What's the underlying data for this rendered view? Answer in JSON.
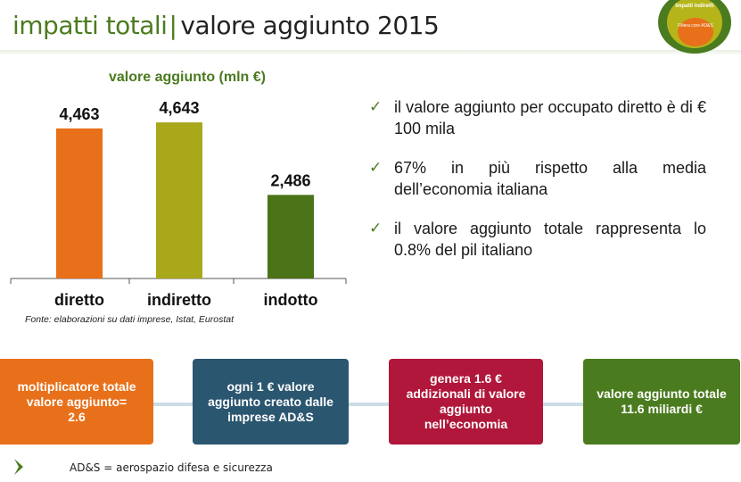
{
  "header": {
    "title_part1": "impatti totali",
    "separator": "|",
    "title_part2": "valore aggiunto 2015"
  },
  "logo": {
    "outer_text": "Impatti indiretti",
    "inner_text": "Filiera core AD&S"
  },
  "chart_data": {
    "type": "bar",
    "title": "valore aggiunto (mln €)",
    "categories": [
      "diretto",
      "indiretto",
      "indotto"
    ],
    "values": [
      4463,
      4643,
      2486
    ],
    "value_labels": [
      "4,463",
      "4,643",
      "2,486"
    ],
    "colors": [
      "#e8701a",
      "#a9a81b",
      "#4b7418"
    ],
    "ylim": [
      0,
      5000
    ],
    "grid": false,
    "source": "Fonte: elaborazioni su dati imprese, Istat, Eurostat"
  },
  "bullets": [
    "il valore aggiunto per occupato diretto è di € 100 mila",
    "67% in più rispetto alla media dell’economia italiana",
    "il valore aggiunto totale rappresenta lo 0.8% del pil italiano"
  ],
  "boxes": [
    "moltiplicatore totale\nvalore aggiunto=\n2.6",
    "ogni 1 € valore\naggiunto creato dalle\nimprese AD&S",
    "genera 1.6 €\naddizionali di valore\naggiunto\nnell’economia",
    "valore aggiunto totale\n11.6  miliardi €"
  ],
  "footnote": "AD&S = aerospazio difesa e sicurezza",
  "colors": {
    "accent_green": "#4b7b1f",
    "orange": "#e8701a",
    "olive": "#a9a81b",
    "dark_green": "#4b7418",
    "navy": "#2b5670",
    "crimson": "#b0173a"
  }
}
